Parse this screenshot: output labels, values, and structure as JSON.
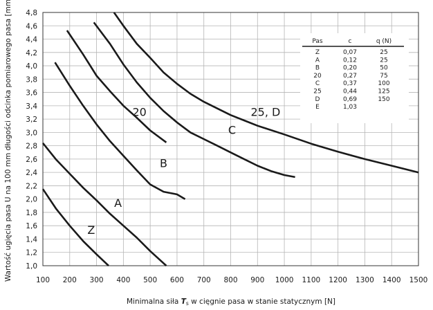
{
  "chart_data": {
    "type": "line",
    "ylabel": "Wartość ugięcia pasa U na 100 mm długości odcinka pomiarowego pasa [mm]",
    "xlabel_parts": [
      "Minimalna siła ",
      "T",
      "s",
      " w cięgnie pasa w stanie statycznym [N]"
    ],
    "xlim": [
      100,
      1500
    ],
    "ylim": [
      1.0,
      4.8
    ],
    "xticks": [
      100,
      200,
      300,
      400,
      500,
      600,
      700,
      800,
      900,
      1000,
      1100,
      1200,
      1300,
      1400,
      1500
    ],
    "yticks": [
      1.0,
      1.2,
      1.4,
      1.6,
      1.8,
      2.0,
      2.2,
      2.4,
      2.6,
      2.8,
      3.0,
      3.2,
      3.4,
      3.6,
      3.8,
      4.0,
      4.2,
      4.4,
      4.6,
      4.8
    ],
    "grid": true,
    "series": [
      {
        "name": "Z",
        "label": "Z",
        "label_at": [
          280,
          1.48
        ],
        "points": [
          [
            100,
            2.15
          ],
          [
            150,
            1.85
          ],
          [
            200,
            1.6
          ],
          [
            250,
            1.37
          ],
          [
            300,
            1.17
          ],
          [
            345,
            1.0
          ]
        ]
      },
      {
        "name": "A",
        "label": "A",
        "label_at": [
          380,
          1.88
        ],
        "points": [
          [
            100,
            2.84
          ],
          [
            150,
            2.59
          ],
          [
            200,
            2.38
          ],
          [
            250,
            2.17
          ],
          [
            300,
            1.98
          ],
          [
            350,
            1.78
          ],
          [
            400,
            1.6
          ],
          [
            450,
            1.42
          ],
          [
            500,
            1.22
          ],
          [
            560,
            1.0
          ]
        ]
      },
      {
        "name": "B",
        "label": "B",
        "label_at": [
          550,
          2.48
        ],
        "points": [
          [
            145,
            4.05
          ],
          [
            200,
            3.7
          ],
          [
            250,
            3.4
          ],
          [
            300,
            3.12
          ],
          [
            350,
            2.87
          ],
          [
            400,
            2.65
          ],
          [
            450,
            2.43
          ],
          [
            500,
            2.22
          ],
          [
            550,
            2.11
          ],
          [
            600,
            2.07
          ],
          [
            630,
            2.0
          ]
        ]
      },
      {
        "name": "20",
        "label": "20",
        "label_at": [
          460,
          3.25
        ],
        "points": [
          [
            190,
            4.53
          ],
          [
            250,
            4.17
          ],
          [
            300,
            3.85
          ],
          [
            350,
            3.62
          ],
          [
            400,
            3.4
          ],
          [
            450,
            3.22
          ],
          [
            500,
            3.03
          ],
          [
            560,
            2.85
          ]
        ]
      },
      {
        "name": "C",
        "label": "C",
        "label_at": [
          805,
          2.98
        ],
        "points": [
          [
            290,
            4.65
          ],
          [
            350,
            4.33
          ],
          [
            400,
            4.02
          ],
          [
            450,
            3.75
          ],
          [
            500,
            3.52
          ],
          [
            550,
            3.32
          ],
          [
            600,
            3.15
          ],
          [
            650,
            3.0
          ],
          [
            700,
            2.9
          ],
          [
            750,
            2.8
          ],
          [
            800,
            2.7
          ],
          [
            850,
            2.6
          ],
          [
            900,
            2.5
          ],
          [
            950,
            2.42
          ],
          [
            1000,
            2.36
          ],
          [
            1040,
            2.33
          ]
        ]
      },
      {
        "name": "25, D",
        "label": "25, D",
        "label_at": [
          930,
          3.25
        ],
        "points": [
          [
            365,
            4.8
          ],
          [
            400,
            4.6
          ],
          [
            450,
            4.33
          ],
          [
            500,
            4.12
          ],
          [
            550,
            3.9
          ],
          [
            600,
            3.73
          ],
          [
            650,
            3.58
          ],
          [
            700,
            3.46
          ],
          [
            750,
            3.36
          ],
          [
            800,
            3.26
          ],
          [
            850,
            3.18
          ],
          [
            900,
            3.1
          ],
          [
            1000,
            2.97
          ],
          [
            1100,
            2.83
          ],
          [
            1200,
            2.71
          ],
          [
            1300,
            2.6
          ],
          [
            1400,
            2.5
          ],
          [
            1500,
            2.4
          ]
        ]
      }
    ]
  },
  "table": {
    "headers": [
      "Pas",
      "c",
      "q (N)"
    ],
    "rows": [
      [
        "Z",
        "0,07",
        "25"
      ],
      [
        "A",
        "0,12",
        "25"
      ],
      [
        "B",
        "0,20",
        "50"
      ],
      [
        "20",
        "0,27",
        "75"
      ],
      [
        "C",
        "0,37",
        "100"
      ],
      [
        "25",
        "0,44",
        "125"
      ],
      [
        "D",
        "0,69",
        "150"
      ],
      [
        "E",
        "1,03",
        ""
      ]
    ]
  }
}
